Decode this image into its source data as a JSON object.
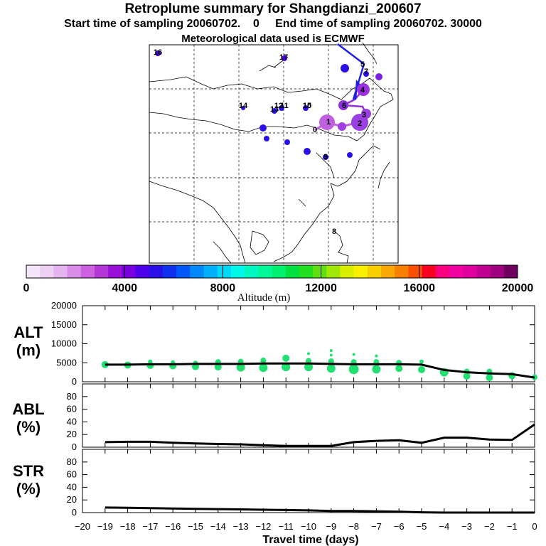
{
  "header": {
    "title": "Retroplume summary for Shangdianzi_200607",
    "start_label": "Start time of sampling 20060702.",
    "start_value": "0",
    "end_label": "End time of sampling 20060702. 30000",
    "met": "Meteorological data used is ECMWF"
  },
  "map": {
    "point_labels": [
      "0",
      "1",
      "2",
      "3",
      "4",
      "5",
      "6",
      "7",
      "8",
      "9",
      "10",
      "11",
      "12",
      "13",
      "14",
      "15",
      "16",
      "17"
    ]
  },
  "colorbar": {
    "ticks": [
      "0",
      "4000",
      "8000",
      "12000",
      "16000",
      "20000"
    ],
    "label": "Altitude (m)",
    "colors": [
      "#f4e6f8",
      "#eed0f4",
      "#e4b4ee",
      "#d98ce8",
      "#cc60e0",
      "#b436d6",
      "#9a10d8",
      "#7a00e0",
      "#4e00ea",
      "#2a10e8",
      "#1030f0",
      "#0058f8",
      "#0088f8",
      "#00b0f8",
      "#00d8f8",
      "#00f8e8",
      "#00f8c0",
      "#00f898",
      "#00f070",
      "#00e040",
      "#20e020",
      "#60e010",
      "#a0e808",
      "#d8f000",
      "#f8f000",
      "#f8d000",
      "#f8a800",
      "#f88000",
      "#f85000",
      "#f80020",
      "#f80080",
      "#f000a0",
      "#e000a0",
      "#c00090",
      "#a00080",
      "#700060"
    ]
  },
  "chart_data": [
    {
      "type": "scatter",
      "name": "ALT",
      "ylabel": "ALT (m)",
      "ylim": [
        0,
        20000
      ],
      "yticks": [
        "0",
        "5000",
        "10000",
        "15000",
        "20000"
      ],
      "line_x": [
        -19,
        -18,
        -17,
        -16,
        -15,
        -14,
        -13,
        -12,
        -11,
        -10,
        -9,
        -8,
        -7,
        -6,
        -5,
        -4,
        -3,
        -2,
        -1,
        0
      ],
      "line_y": [
        4500,
        4500,
        4600,
        4600,
        4700,
        4700,
        4700,
        4800,
        4800,
        4800,
        4700,
        4600,
        4600,
        4600,
        4500,
        3100,
        2500,
        2200,
        2000,
        1100
      ],
      "points": [
        {
          "x": -19,
          "y": 4500,
          "r": 5
        },
        {
          "x": -18,
          "y": 4400,
          "r": 5
        },
        {
          "x": -17,
          "y": 4300,
          "r": 5
        },
        {
          "x": -17,
          "y": 5300,
          "r": 3
        },
        {
          "x": -16,
          "y": 4200,
          "r": 5
        },
        {
          "x": -16,
          "y": 5100,
          "r": 3
        },
        {
          "x": -15,
          "y": 4000,
          "r": 5
        },
        {
          "x": -15,
          "y": 5000,
          "r": 3
        },
        {
          "x": -14,
          "y": 3900,
          "r": 5
        },
        {
          "x": -14,
          "y": 5200,
          "r": 4
        },
        {
          "x": -13,
          "y": 3800,
          "r": 6
        },
        {
          "x": -13,
          "y": 5300,
          "r": 4
        },
        {
          "x": -12,
          "y": 3700,
          "r": 6
        },
        {
          "x": -12,
          "y": 5600,
          "r": 4
        },
        {
          "x": -11,
          "y": 3900,
          "r": 6
        },
        {
          "x": -11,
          "y": 6200,
          "r": 5
        },
        {
          "x": -10,
          "y": 3900,
          "r": 6
        },
        {
          "x": -10,
          "y": 5500,
          "r": 4
        },
        {
          "x": -10,
          "y": 7400,
          "r": 2
        },
        {
          "x": -9,
          "y": 3500,
          "r": 6
        },
        {
          "x": -9,
          "y": 5400,
          "r": 4
        },
        {
          "x": -9,
          "y": 7000,
          "r": 2
        },
        {
          "x": -9,
          "y": 8200,
          "r": 2
        },
        {
          "x": -8,
          "y": 3300,
          "r": 7
        },
        {
          "x": -8,
          "y": 5200,
          "r": 4
        },
        {
          "x": -8,
          "y": 7200,
          "r": 2
        },
        {
          "x": -7,
          "y": 3300,
          "r": 6
        },
        {
          "x": -7,
          "y": 5200,
          "r": 4
        },
        {
          "x": -7,
          "y": 6800,
          "r": 2
        },
        {
          "x": -6,
          "y": 3500,
          "r": 5
        },
        {
          "x": -6,
          "y": 5000,
          "r": 4
        },
        {
          "x": -5,
          "y": 3200,
          "r": 5
        },
        {
          "x": -5,
          "y": 5300,
          "r": 3
        },
        {
          "x": -4,
          "y": 2500,
          "r": 6
        },
        {
          "x": -3,
          "y": 1500,
          "r": 5
        },
        {
          "x": -3,
          "y": 2700,
          "r": 4
        },
        {
          "x": -2,
          "y": 1100,
          "r": 5
        },
        {
          "x": -2,
          "y": 2700,
          "r": 4
        },
        {
          "x": -1,
          "y": 1600,
          "r": 5
        },
        {
          "x": 0,
          "y": 1200,
          "r": 4
        }
      ]
    },
    {
      "type": "line",
      "name": "ABL",
      "ylabel": "ABL (%)",
      "ylim": [
        0,
        100
      ],
      "yticks": [
        "0",
        "20",
        "40",
        "60",
        "80"
      ],
      "x": [
        -19,
        -18,
        -17,
        -16,
        -15,
        -14,
        -13,
        -12,
        -11,
        -10,
        -9,
        -8,
        -7,
        -6,
        -5,
        -4,
        -3,
        -2,
        -1,
        0
      ],
      "values": [
        8,
        8.5,
        8.5,
        7,
        6,
        5,
        4.5,
        3,
        2,
        2,
        2,
        8,
        10,
        11,
        7,
        15,
        15,
        12,
        11.5,
        36
      ]
    },
    {
      "type": "line",
      "name": "STR",
      "ylabel": "STR (%)",
      "ylim": [
        0,
        100
      ],
      "yticks": [
        "0",
        "20",
        "40",
        "60",
        "80"
      ],
      "x": [
        -19,
        -18,
        -17,
        -16,
        -15,
        -14,
        -13,
        -12,
        -11,
        -10,
        -9,
        -8,
        -7,
        -6,
        -5,
        -4,
        -3,
        -2,
        -1,
        0
      ],
      "values": [
        8,
        7.5,
        7,
        6.5,
        6,
        5.5,
        5,
        4.5,
        4,
        3.5,
        2.5,
        2.5,
        2,
        1.5,
        0.5,
        0,
        0,
        0,
        0,
        0
      ]
    }
  ],
  "xaxis": {
    "title": "Travel time (days)",
    "ticks": [
      "−20",
      "−19",
      "−18",
      "−17",
      "−16",
      "−15",
      "−14",
      "−13",
      "−12",
      "−11",
      "−10",
      "−9",
      "−8",
      "−7",
      "−6",
      "−5",
      "−4",
      "−3",
      "−2",
      "−1",
      "0"
    ]
  },
  "panel_labels": {
    "alt_top": "ALT",
    "alt_bottom": "(m)",
    "abl_top": "ABL",
    "abl_bottom": "(%)",
    "str_top": "STR",
    "str_bottom": "(%)"
  }
}
